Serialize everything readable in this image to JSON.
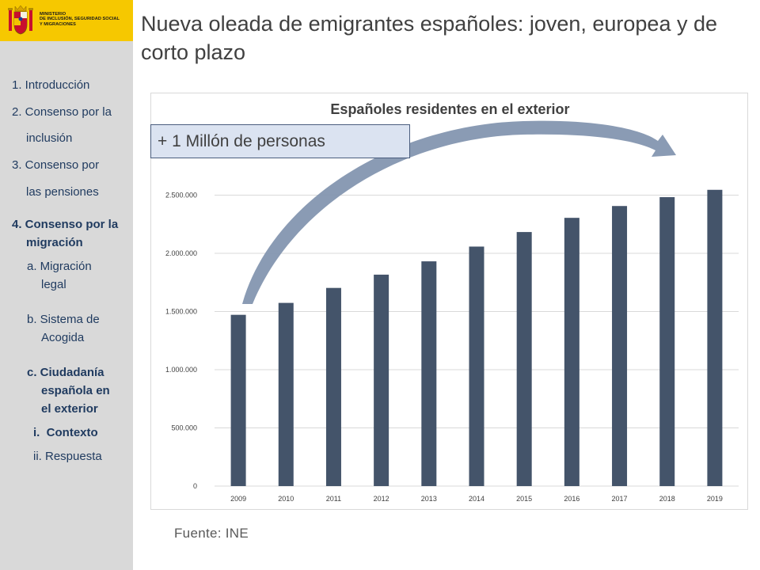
{
  "header": {
    "ministry_lines": [
      "MINISTERIO",
      "DE INCLUSIÓN, SEGURIDAD SOCIAL",
      "Y MIGRACIONES"
    ],
    "title": "Nueva oleada de emigrantes españoles: joven, europea y de corto plazo"
  },
  "sidebar": {
    "items": [
      {
        "label": "1. Introducción"
      },
      {
        "label": "2. Consenso por la"
      },
      {
        "label": "inclusión"
      },
      {
        "label": "3. Consenso por"
      },
      {
        "label": "las pensiones"
      },
      {
        "label": "4. Consenso por la"
      },
      {
        "label": "migración"
      },
      {
        "label": "a. Migración"
      },
      {
        "label": "legal"
      },
      {
        "label": "b. Sistema de"
      },
      {
        "label": "Acogida"
      },
      {
        "label": "c. Ciudadanía"
      },
      {
        "label": "española en"
      },
      {
        "label": "el exterior"
      },
      {
        "label": "i.  Contexto"
      },
      {
        "label": "ii. Respuesta"
      }
    ]
  },
  "callout": {
    "text": "+ 1 Millón de personas"
  },
  "source": {
    "text": "Fuente: INE"
  },
  "colors": {
    "bar": "#44546a",
    "sidebar": "#d9d9d9",
    "logo_bg": "#f6c800",
    "callout_bg": "#dbe3f1",
    "arrow": "#8496b0"
  },
  "chart_data": {
    "type": "bar",
    "title": "Españoles residentes en el exterior",
    "xlabel": "",
    "ylabel": "",
    "categories": [
      "2009",
      "2010",
      "2011",
      "2012",
      "2013",
      "2014",
      "2015",
      "2016",
      "2017",
      "2018",
      "2019"
    ],
    "values": [
      1471691,
      1574123,
      1702778,
      1816835,
      1931248,
      2058048,
      2183043,
      2305030,
      2406611,
      2482808,
      2545729
    ],
    "ylim": [
      0,
      3000000
    ],
    "yticks": [
      0,
      500000,
      1000000,
      1500000,
      2000000,
      2500000
    ],
    "ytick_labels": [
      "0",
      "500.000",
      "1.000.000",
      "1.500.000",
      "2.000.000",
      "2.500.000"
    ],
    "grid": true,
    "legend": "none"
  }
}
